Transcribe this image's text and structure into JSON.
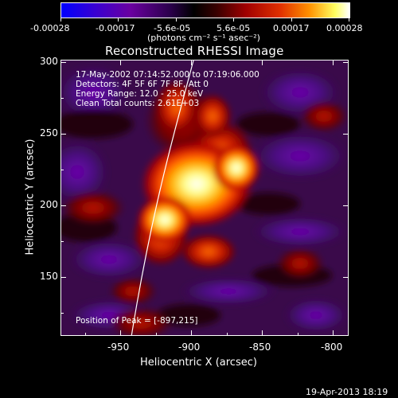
{
  "colorbar": {
    "tick_labels": [
      "-0.00028",
      "-0.00017",
      "-5.6e-05",
      "5.6e-05",
      "0.00017",
      "0.00028"
    ],
    "unit_label": "(photons cm⁻² s⁻¹ asec⁻²)"
  },
  "plot": {
    "title": "Reconstructed RHESSI Image",
    "xlabel": "Heliocentric X (arcsec)",
    "ylabel": "Heliocentric Y (arcsec)",
    "x_ticks": [
      "-950",
      "-900",
      "-850",
      "-800"
    ],
    "y_ticks": [
      "300",
      "250",
      "200",
      "150"
    ],
    "info_lines": [
      "17-May-2002 07:14:52.000 to 07:19:06.000",
      "Detectors: 4F 5F 6F 7F 8F, Att 0",
      "Energy Range: 12.0 - 25.0 keV",
      "Clean    Total counts: 2.61E+03"
    ],
    "peak_text": "Position of Peak = [-897,215]"
  },
  "footer": {
    "timestamp": "19-Apr-2013 18:19"
  }
}
